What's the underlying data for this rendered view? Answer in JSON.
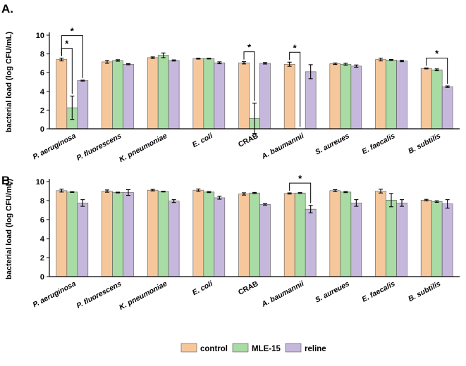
{
  "panels": [
    {
      "label": "A."
    },
    {
      "label": "B."
    }
  ],
  "legend": {
    "position": "bottom-center",
    "entries": [
      {
        "name": "control",
        "color": "#f7c79c"
      },
      {
        "name": "MLE-15",
        "color": "#a9dba4"
      },
      {
        "name": "reline",
        "color": "#c6b8dc"
      }
    ]
  },
  "significance_marker": "*",
  "chart_data": [
    {
      "type": "bar",
      "panel": "A.",
      "categories": [
        "P. aeruginosa",
        "P. fluorescens",
        "K. pneumoniae",
        "E. coli",
        "CRAB",
        "A. baumannii",
        "S. aureues",
        "E. faecalis",
        "B. subtilis"
      ],
      "series": [
        {
          "name": "control",
          "values": [
            7.4,
            7.15,
            7.6,
            7.5,
            7.05,
            6.9,
            6.95,
            7.4,
            6.45
          ],
          "errors": [
            0.15,
            0.15,
            0.08,
            0.05,
            0.12,
            0.22,
            0.08,
            0.15,
            0.05
          ]
        },
        {
          "name": "MLE-15",
          "values": [
            2.25,
            7.3,
            7.85,
            7.5,
            1.1,
            0.0,
            6.9,
            7.35,
            6.3
          ],
          "errors": [
            1.25,
            0.08,
            0.25,
            0.04,
            1.65,
            0.0,
            0.1,
            0.06,
            0.1
          ]
        },
        {
          "name": "reline",
          "values": [
            5.15,
            6.9,
            7.3,
            7.05,
            7.0,
            6.1,
            6.7,
            7.25,
            4.5
          ],
          "errors": [
            0.05,
            0.06,
            0.06,
            0.1,
            0.08,
            0.75,
            0.12,
            0.08,
            0.08
          ]
        }
      ],
      "ylabel": "bacterial load (log CFU/mL)",
      "ylim": [
        0,
        10
      ],
      "yticks": [
        0,
        2,
        4,
        6,
        8,
        10
      ],
      "significance": [
        {
          "category": 0,
          "from": "control",
          "to": "MLE-15",
          "label": "*"
        },
        {
          "category": 0,
          "from": "control",
          "to": "reline",
          "label": "*"
        },
        {
          "category": 4,
          "from": "control",
          "to": "MLE-15",
          "label": "*"
        },
        {
          "category": 5,
          "from": "control",
          "to": "MLE-15",
          "label": "*"
        },
        {
          "category": 8,
          "from": "control",
          "to": "reline",
          "label": "*"
        }
      ]
    },
    {
      "type": "bar",
      "panel": "B.",
      "categories": [
        "P. aeruginosa",
        "P. fluorescens",
        "K. pneumoniae",
        "E. coli",
        "CRAB",
        "A. baumannii",
        "S. aureues",
        "E. faecalis",
        "B. subtilis"
      ],
      "series": [
        {
          "name": "control",
          "values": [
            9.05,
            9.0,
            9.1,
            9.1,
            8.7,
            8.75,
            9.05,
            9.0,
            8.05
          ],
          "errors": [
            0.15,
            0.12,
            0.08,
            0.12,
            0.12,
            0.06,
            0.1,
            0.2,
            0.08
          ]
        },
        {
          "name": "MLE-15",
          "values": [
            8.9,
            8.85,
            8.95,
            8.9,
            8.8,
            8.8,
            8.9,
            8.05,
            7.9
          ],
          "errors": [
            0.04,
            0.04,
            0.04,
            0.06,
            0.06,
            0.04,
            0.06,
            0.7,
            0.08
          ]
        },
        {
          "name": "reline",
          "values": [
            7.75,
            8.85,
            7.95,
            8.3,
            7.6,
            7.1,
            7.75,
            7.75,
            7.65
          ],
          "errors": [
            0.35,
            0.3,
            0.15,
            0.15,
            0.08,
            0.4,
            0.35,
            0.35,
            0.45
          ]
        }
      ],
      "ylabel": "bacterial load (log CFU/mL)",
      "ylim": [
        0,
        10
      ],
      "yticks": [
        0,
        2,
        4,
        6,
        8,
        10
      ],
      "significance": [
        {
          "category": 5,
          "from": "control",
          "to": "reline",
          "label": "*"
        }
      ]
    }
  ]
}
